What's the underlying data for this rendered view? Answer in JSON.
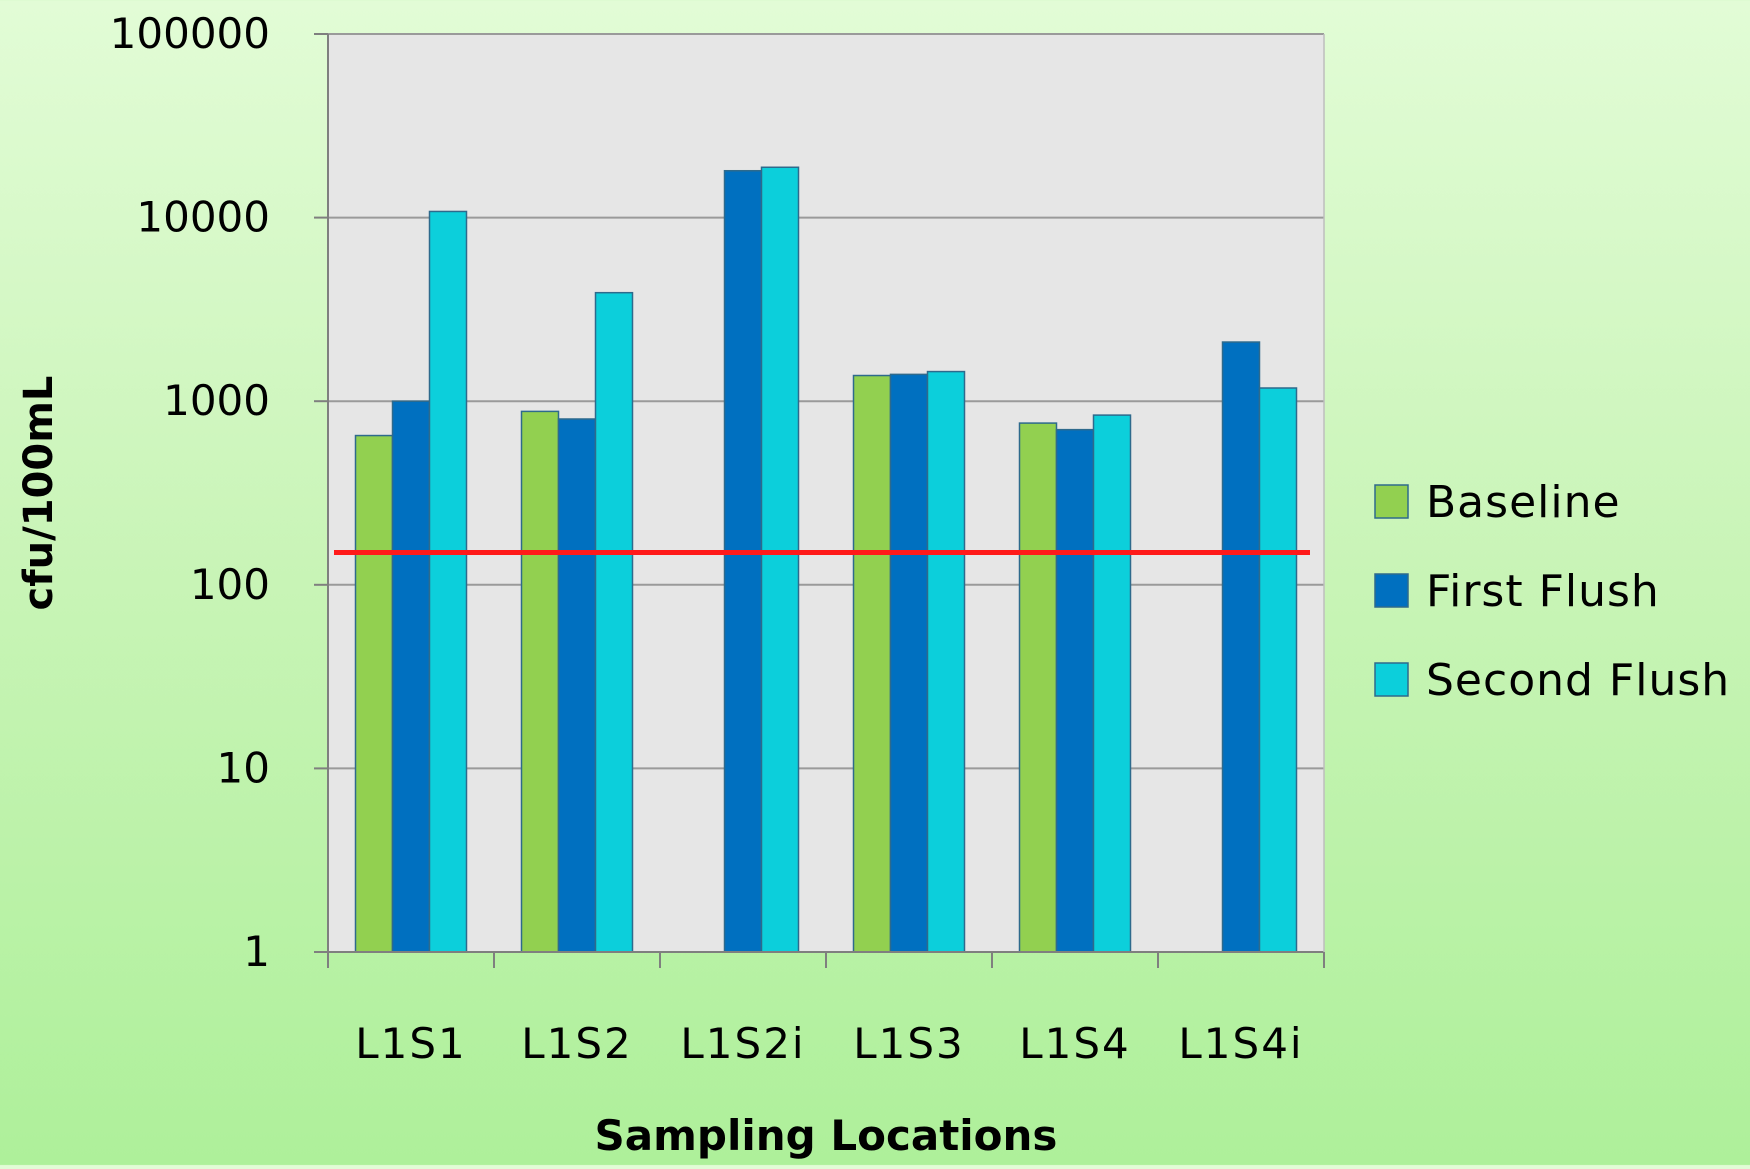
{
  "chart_data": {
    "type": "bar",
    "title": "",
    "xlabel": "Sampling Locations",
    "ylabel": "cfu/100mL",
    "y_scale": "log",
    "ylim": [
      1,
      100000
    ],
    "y_ticks": [
      1,
      10,
      100,
      1000,
      10000,
      100000
    ],
    "y_tick_labels": [
      "1",
      "10",
      "100",
      "1000",
      "10000",
      "100000"
    ],
    "grid": true,
    "legend_position": "right",
    "categories": [
      "L1S1",
      "L1S2",
      "L1S2i",
      "L1S3",
      "L1S4",
      "L1S4i"
    ],
    "series": [
      {
        "name": "Baseline",
        "color": "#92d050",
        "values": [
          650,
          880,
          null,
          1380,
          760,
          null
        ]
      },
      {
        "name": "First Flush",
        "color": "#0070c0",
        "values": [
          1000,
          800,
          18000,
          1400,
          700,
          2100
        ]
      },
      {
        "name": "Second Flush",
        "color": "#0ccfdb",
        "values": [
          10800,
          3900,
          18800,
          1450,
          840,
          1180
        ]
      }
    ],
    "reference_line": {
      "value": 150,
      "color": "#ff1a1a"
    },
    "plot_background": "#e6e6e6",
    "grid_color": "#9a9a9a"
  }
}
